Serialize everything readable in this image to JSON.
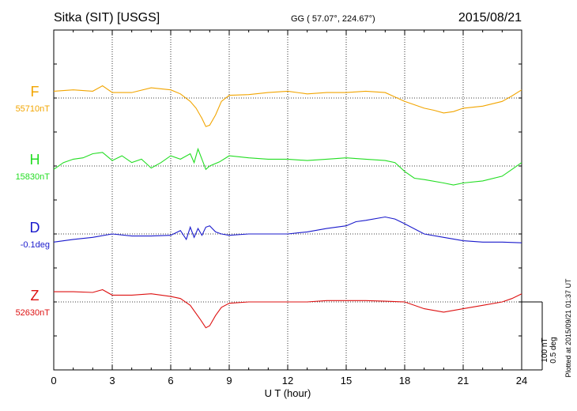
{
  "header": {
    "station": "Sitka (SIT)  [USGS]",
    "coords": "GG ( 57.07°, 224.67°)",
    "date": "2015/08/21"
  },
  "plotted_note": "Plotted at 2015/09/21 01:37 UT",
  "scale_bar": {
    "nt": "100 nT",
    "deg": "0.5 deg"
  },
  "chart_data": {
    "type": "line",
    "xlabel": "U T (hour)",
    "xlim": [
      0,
      24
    ],
    "xticks": [
      "0",
      "3",
      "6",
      "9",
      "12",
      "15",
      "18",
      "21",
      "24"
    ],
    "grid": "dotted",
    "y_scale_note": "vertical bar = 100 nT / 0.5 deg",
    "series": [
      {
        "name": "F",
        "baseline_label": "55710nT",
        "color": "#f2a500",
        "unit": "nT",
        "x": [
          0,
          1,
          2,
          2.5,
          3,
          4,
          5,
          6,
          6.5,
          7,
          7.3,
          7.6,
          7.8,
          8,
          8.3,
          8.6,
          9,
          10,
          11,
          12,
          13,
          14,
          15,
          16,
          17,
          18,
          19,
          19.5,
          20,
          20.5,
          21,
          22,
          23,
          23.5,
          24
        ],
        "values": [
          10,
          12,
          10,
          18,
          8,
          8,
          15,
          12,
          6,
          -5,
          -15,
          -30,
          -42,
          -40,
          -25,
          -5,
          4,
          5,
          8,
          10,
          6,
          8,
          8,
          10,
          8,
          -5,
          -15,
          -18,
          -22,
          -20,
          -15,
          -12,
          -5,
          3,
          12
        ]
      },
      {
        "name": "H",
        "baseline_label": "15830nT",
        "color": "#22dd22",
        "unit": "nT",
        "x": [
          0,
          0.5,
          1,
          1.5,
          2,
          2.5,
          3,
          3.5,
          4,
          4.5,
          5,
          5.5,
          6,
          6.5,
          7,
          7.2,
          7.4,
          7.6,
          7.8,
          8,
          8.5,
          9,
          10,
          11,
          12,
          13,
          14,
          15,
          16,
          17,
          17.5,
          18,
          18.5,
          19,
          20,
          20.5,
          21,
          22,
          23,
          23.5,
          24
        ],
        "values": [
          -5,
          5,
          10,
          12,
          18,
          20,
          8,
          15,
          5,
          10,
          -3,
          5,
          15,
          10,
          18,
          5,
          25,
          10,
          -5,
          0,
          6,
          15,
          12,
          10,
          10,
          8,
          10,
          12,
          10,
          8,
          5,
          -8,
          -18,
          -20,
          -25,
          -28,
          -25,
          -22,
          -15,
          -5,
          5
        ]
      },
      {
        "name": "D",
        "baseline_label": "-0.1deg",
        "color": "#1a1acc",
        "unit": "deg",
        "x": [
          0,
          1,
          2,
          3,
          4,
          5,
          6,
          6.5,
          6.8,
          7,
          7.2,
          7.4,
          7.6,
          7.8,
          8,
          8.3,
          8.6,
          9,
          10,
          11,
          12,
          13,
          14,
          15,
          15.5,
          16,
          17,
          17.5,
          18,
          19,
          20,
          21,
          22,
          23,
          24
        ],
        "values": [
          -12,
          -8,
          -5,
          0,
          -3,
          -3,
          -2,
          5,
          -8,
          10,
          -5,
          8,
          -2,
          10,
          12,
          3,
          0,
          -2,
          0,
          0,
          0,
          3,
          8,
          12,
          18,
          20,
          25,
          22,
          15,
          0,
          -5,
          -10,
          -12,
          -12,
          -13
        ]
      },
      {
        "name": "Z",
        "baseline_label": "52630nT",
        "color": "#dd1111",
        "unit": "nT",
        "x": [
          0,
          1,
          2,
          2.5,
          3,
          4,
          5,
          6,
          6.5,
          7,
          7.5,
          7.8,
          8,
          8.3,
          8.6,
          9,
          10,
          11,
          12,
          13,
          14,
          15,
          16,
          17,
          18,
          19,
          20,
          21,
          22,
          23,
          23.5,
          24
        ],
        "values": [
          15,
          15,
          14,
          18,
          10,
          10,
          12,
          8,
          5,
          -5,
          -25,
          -38,
          -35,
          -20,
          -8,
          -2,
          0,
          0,
          0,
          0,
          2,
          2,
          2,
          1,
          0,
          -10,
          -15,
          -10,
          -5,
          0,
          5,
          12
        ]
      }
    ]
  }
}
